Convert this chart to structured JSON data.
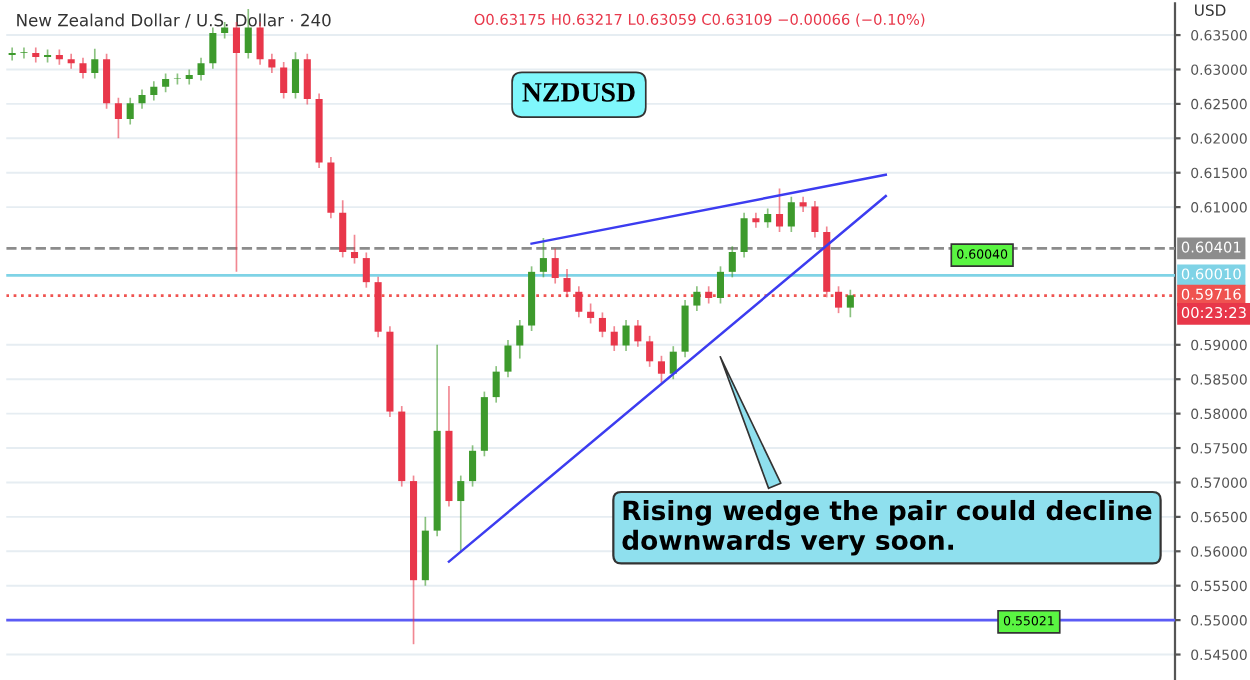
{
  "chart_data": {
    "type": "candlestick",
    "title": "New Zealand Dollar / U.S. Dollar · 240",
    "subtitle": "O0.63175 H0.63217 L0.63059 C0.63109 −0.00066 (−0.10%)",
    "ylabel": "USD",
    "annotations": [
      "NZDUSD",
      "Rising wedge the pair could decline downwards very soon.",
      "0.60040",
      "0.55021",
      "00:23:23"
    ],
    "categories": [
      null,
      null,
      null,
      null,
      null,
      null,
      null,
      null,
      null,
      null,
      null,
      null,
      null,
      null,
      null,
      null,
      null,
      null,
      null,
      null,
      null,
      null,
      null,
      null,
      null,
      null,
      null,
      null,
      null,
      null,
      null,
      null,
      null,
      null,
      null,
      null,
      null,
      null,
      null,
      null,
      null,
      null,
      null,
      null,
      null,
      null,
      null,
      null,
      null,
      null,
      null,
      null,
      null,
      null,
      null,
      null,
      null,
      null,
      null,
      null,
      null,
      null,
      null,
      null,
      null,
      null,
      null,
      null,
      null,
      null,
      null,
      null,
      null,
      null,
      null,
      null,
      null,
      null,
      null,
      null,
      null,
      null,
      null,
      null,
      null,
      null,
      null,
      null,
      null,
      null,
      null,
      null,
      null,
      null,
      null,
      null,
      null,
      null,
      null
    ],
    "ohlc": [
      [
        0.6321,
        0.6332,
        0.6313,
        0.6324
      ],
      [
        0.6324,
        0.6332,
        0.6316,
        0.6324
      ],
      [
        0.6324,
        0.6332,
        0.631,
        0.6318
      ],
      [
        0.6318,
        0.6329,
        0.631,
        0.6321
      ],
      [
        0.6321,
        0.6329,
        0.6307,
        0.6315
      ],
      [
        0.6315,
        0.6323,
        0.6301,
        0.6309
      ],
      [
        0.6309,
        0.6317,
        0.6287,
        0.6295
      ],
      [
        0.6295,
        0.633,
        0.6287,
        0.6315
      ],
      [
        0.6315,
        0.6323,
        0.6243,
        0.6251
      ],
      [
        0.6251,
        0.6259,
        0.62,
        0.6228
      ],
      [
        0.6228,
        0.6259,
        0.622,
        0.6251
      ],
      [
        0.6251,
        0.6271,
        0.6243,
        0.6263
      ],
      [
        0.6263,
        0.6283,
        0.6255,
        0.6275
      ],
      [
        0.6275,
        0.6294,
        0.6267,
        0.6286
      ],
      [
        0.6286,
        0.6294,
        0.6278,
        0.6286
      ],
      [
        0.6286,
        0.63,
        0.6278,
        0.6292
      ],
      [
        0.6292,
        0.6317,
        0.6284,
        0.6309
      ],
      [
        0.6309,
        0.6361,
        0.6301,
        0.6353
      ],
      [
        0.6353,
        0.6369,
        0.6345,
        0.6361
      ],
      [
        0.6361,
        0.6369,
        0.6006,
        0.6324
      ],
      [
        0.6324,
        0.6388,
        0.6316,
        0.6361
      ],
      [
        0.6361,
        0.6369,
        0.6307,
        0.6315
      ],
      [
        0.6315,
        0.6323,
        0.6295,
        0.6303
      ],
      [
        0.6303,
        0.6311,
        0.6258,
        0.6266
      ],
      [
        0.6266,
        0.6325,
        0.6258,
        0.6315
      ],
      [
        0.6315,
        0.6323,
        0.6249,
        0.6257
      ],
      [
        0.6257,
        0.6265,
        0.6157,
        0.6165
      ],
      [
        0.6165,
        0.6173,
        0.6084,
        0.6092
      ],
      [
        0.6092,
        0.611,
        0.6027,
        0.6035
      ],
      [
        0.6035,
        0.606,
        0.6018,
        0.6026
      ],
      [
        0.6026,
        0.6034,
        0.5983,
        0.5991
      ],
      [
        0.5991,
        0.5999,
        0.5911,
        0.5919
      ],
      [
        0.5919,
        0.5927,
        0.5795,
        0.5803
      ],
      [
        0.5803,
        0.5811,
        0.5694,
        0.5702
      ],
      [
        0.5702,
        0.571,
        0.5465,
        0.5558
      ],
      [
        0.5558,
        0.565,
        0.555,
        0.563
      ],
      [
        0.563,
        0.59,
        0.5622,
        0.5775
      ],
      [
        0.5775,
        0.584,
        0.5665,
        0.5673
      ],
      [
        0.5673,
        0.571,
        0.56,
        0.5702
      ],
      [
        0.5702,
        0.5754,
        0.5694,
        0.5746
      ],
      [
        0.5746,
        0.5832,
        0.5738,
        0.5824
      ],
      [
        0.5824,
        0.5869,
        0.5816,
        0.5861
      ],
      [
        0.5861,
        0.5907,
        0.5853,
        0.5899
      ],
      [
        0.5899,
        0.5936,
        0.588,
        0.5928
      ],
      [
        0.5928,
        0.6014,
        0.592,
        0.6006
      ],
      [
        0.6006,
        0.6055,
        0.5998,
        0.6026
      ],
      [
        0.6026,
        0.604,
        0.5989,
        0.5997
      ],
      [
        0.5997,
        0.601,
        0.5969,
        0.5977
      ],
      [
        0.5977,
        0.5985,
        0.594,
        0.5948
      ],
      [
        0.5948,
        0.596,
        0.5931,
        0.5939
      ],
      [
        0.5939,
        0.5947,
        0.5911,
        0.5919
      ],
      [
        0.5919,
        0.5927,
        0.5891,
        0.5899
      ],
      [
        0.5899,
        0.5936,
        0.5891,
        0.5928
      ],
      [
        0.5928,
        0.5936,
        0.5897,
        0.5905
      ],
      [
        0.5905,
        0.5913,
        0.5868,
        0.5876
      ],
      [
        0.5876,
        0.5884,
        0.5845,
        0.5858
      ],
      [
        0.5858,
        0.5898,
        0.585,
        0.589
      ],
      [
        0.589,
        0.5965,
        0.5882,
        0.5957
      ],
      [
        0.5957,
        0.5985,
        0.5949,
        0.5977
      ],
      [
        0.5977,
        0.5985,
        0.596,
        0.5968
      ],
      [
        0.5968,
        0.6014,
        0.596,
        0.6006
      ],
      [
        0.6006,
        0.6043,
        0.5998,
        0.6035
      ],
      [
        0.6035,
        0.6092,
        0.6027,
        0.6084
      ],
      [
        0.6084,
        0.6092,
        0.607,
        0.6078
      ],
      [
        0.6078,
        0.6098,
        0.607,
        0.609
      ],
      [
        0.609,
        0.6127,
        0.6064,
        0.6072
      ],
      [
        0.6072,
        0.6115,
        0.6064,
        0.6107
      ],
      [
        0.6107,
        0.6115,
        0.6093,
        0.6101
      ],
      [
        0.6101,
        0.6109,
        0.6056,
        0.6064
      ],
      [
        0.6064,
        0.6072,
        0.5969,
        0.5977
      ],
      [
        0.5977,
        0.5985,
        0.5946,
        0.5954
      ],
      [
        0.5954,
        0.598,
        0.594,
        0.5972
      ],
      null,
      null,
      null,
      null,
      null,
      null,
      null,
      null,
      null,
      null,
      null,
      null,
      null,
      null,
      null,
      null,
      null,
      null,
      null,
      null,
      null,
      null,
      null,
      null,
      null,
      null,
      null
    ],
    "series": [
      {
        "type": "line",
        "color": "#3c3cf0",
        "values": [
          null,
          null,
          null,
          null,
          null,
          null,
          null,
          null,
          null,
          null,
          null,
          null,
          null,
          null,
          null,
          null,
          null,
          null,
          null,
          null,
          null,
          null,
          null,
          null,
          null,
          null,
          null,
          null,
          null,
          null,
          null,
          null,
          null,
          null,
          null,
          null,
          null,
          null,
          null,
          null,
          null,
          null,
          null,
          null,
          0.6047,
          null,
          null,
          null,
          null,
          null,
          null,
          null,
          null,
          null,
          null,
          null,
          null,
          null,
          null,
          null,
          null,
          null,
          null,
          null,
          null,
          null,
          null,
          null,
          null,
          null,
          null,
          null,
          null,
          null,
          0.6147,
          null,
          null,
          null,
          null,
          null,
          null,
          null,
          null,
          null,
          null,
          null,
          null,
          null,
          null,
          null,
          null,
          null,
          null,
          null,
          null,
          null,
          null,
          null,
          null
        ]
      },
      {
        "type": "line",
        "color": "#3c3cf0",
        "values": [
          null,
          null,
          null,
          null,
          null,
          null,
          null,
          null,
          null,
          null,
          null,
          null,
          null,
          null,
          null,
          null,
          null,
          null,
          null,
          null,
          null,
          null,
          null,
          null,
          null,
          null,
          null,
          null,
          null,
          null,
          null,
          null,
          null,
          null,
          null,
          null,
          null,
          0.5585,
          null,
          null,
          null,
          null,
          null,
          null,
          null,
          null,
          null,
          null,
          null,
          null,
          null,
          null,
          null,
          null,
          null,
          null,
          null,
          null,
          null,
          null,
          null,
          null,
          null,
          null,
          null,
          null,
          null,
          null,
          null,
          null,
          null,
          null,
          null,
          null,
          0.6116,
          null,
          null,
          null,
          null,
          null,
          null,
          null,
          null,
          null,
          null,
          null,
          null,
          null,
          null,
          null,
          null,
          null,
          null,
          null,
          null,
          null,
          null,
          null,
          null
        ]
      }
    ],
    "ref_lines": [
      {
        "axis": "y",
        "value": 0.60401,
        "label": "0.60401",
        "color": "#8c8c8c",
        "line_style": "dashed"
      },
      {
        "axis": "y",
        "value": 0.6001,
        "label": "0.60010",
        "color": "#7fd3e6",
        "line_style": "solid"
      },
      {
        "axis": "y",
        "value": 0.59716,
        "label": "0.59716",
        "color": "#ef5350",
        "line_style": "dotted"
      },
      {
        "axis": "y",
        "value": 0.55,
        "label": null,
        "color": "#5b5bf5",
        "line_style": "solid"
      }
    ],
    "ylim": [
      0.5413,
      0.6396
    ],
    "yticks": [
      {
        "value": 0.545,
        "label": "0.54500"
      },
      {
        "value": 0.55,
        "label": "0.55000"
      },
      {
        "value": 0.555,
        "label": "0.55500"
      },
      {
        "value": 0.56,
        "label": "0.56000"
      },
      {
        "value": 0.565,
        "label": "0.56500"
      },
      {
        "value": 0.57,
        "label": "0.57000"
      },
      {
        "value": 0.575,
        "label": "0.57500"
      },
      {
        "value": 0.58,
        "label": "0.58000"
      },
      {
        "value": 0.585,
        "label": "0.58500"
      },
      {
        "value": 0.59,
        "label": "0.59000"
      },
      {
        "value": 0.61,
        "label": "0.61000"
      },
      {
        "value": 0.615,
        "label": "0.61500"
      },
      {
        "value": 0.62,
        "label": "0.62000"
      },
      {
        "value": 0.625,
        "label": "0.62500"
      },
      {
        "value": 0.63,
        "label": "0.63000"
      },
      {
        "value": 0.635,
        "label": "0.63500"
      }
    ],
    "tick_labels": "y",
    "grid": "y"
  }
}
